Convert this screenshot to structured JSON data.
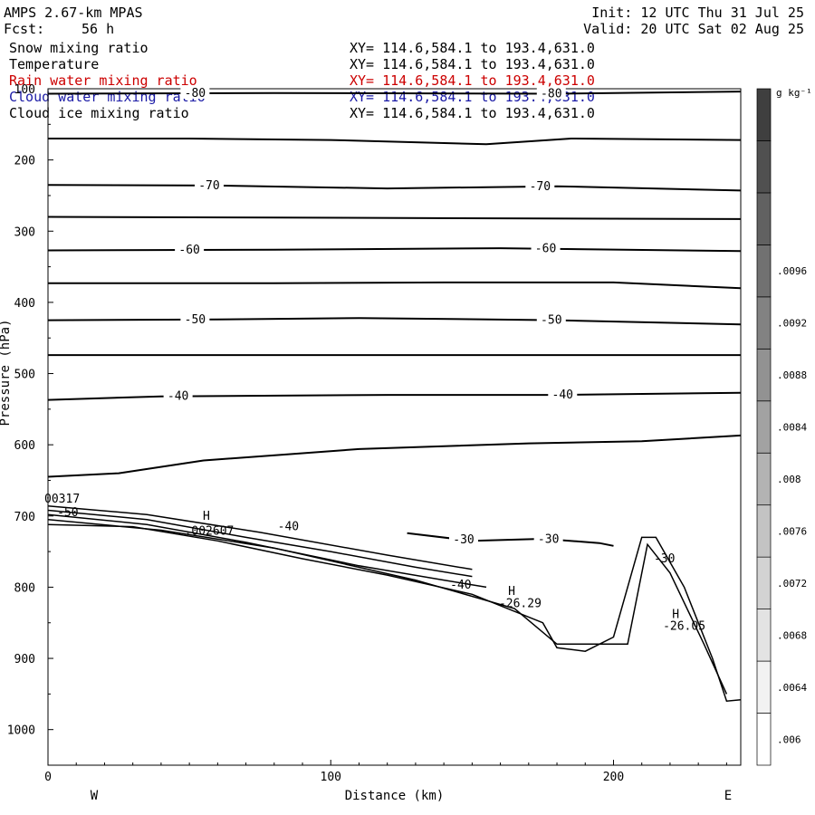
{
  "header": {
    "model": "AMPS 2.67-km MPAS",
    "fcst_label": "Fcst:",
    "fcst_value": "56 h",
    "init": "Init: 12 UTC Thu 31 Jul 25",
    "valid": "Valid: 20 UTC Sat 02 Aug 25"
  },
  "variables": [
    {
      "name": "Snow mixing ratio",
      "xy": "XY= 114.6,584.1 to 193.4,631.0",
      "color": "#000000"
    },
    {
      "name": "Temperature",
      "xy": "XY= 114.6,584.1 to 193.4,631.0",
      "color": "#000000"
    },
    {
      "name": "Rain water mixing ratio",
      "xy": "XY= 114.6,584.1 to 193.4,631.0",
      "color": "#cc0000"
    },
    {
      "name": "Cloud water mixing ratio",
      "xy": "XY= 114.6,584.1 to 193.4,631.0",
      "color": "#1a1aa6"
    },
    {
      "name": "Cloud ice mixing ratio",
      "xy": "XY= 114.6,584.1 to 193.4,631.0",
      "color": "#000000"
    }
  ],
  "chart_data": {
    "type": "contour-cross-section",
    "xlabel": "Distance (km)",
    "ylabel": "Pressure (hPa)",
    "xlim": [
      0,
      245
    ],
    "ylim": [
      1050,
      100
    ],
    "x_ticks": [
      0,
      100,
      200
    ],
    "y_ticks": [
      100,
      200,
      300,
      400,
      500,
      600,
      700,
      800,
      900,
      1000
    ],
    "x_end_labels": {
      "left": "W",
      "right": "E"
    },
    "isotherms": [
      {
        "value": -80,
        "labeled": true,
        "points": [
          [
            0,
            107
          ],
          [
            80,
            106
          ],
          [
            180,
            107
          ],
          [
            245,
            104
          ]
        ],
        "label_x": [
          52,
          178
        ]
      },
      {
        "value": -75,
        "labeled": false,
        "points": [
          [
            0,
            170
          ],
          [
            50,
            170
          ],
          [
            100,
            172
          ],
          [
            155,
            178
          ],
          [
            185,
            170
          ],
          [
            245,
            172
          ]
        ]
      },
      {
        "value": -70,
        "labeled": true,
        "points": [
          [
            0,
            235
          ],
          [
            60,
            236
          ],
          [
            120,
            240
          ],
          [
            180,
            237
          ],
          [
            245,
            243
          ]
        ],
        "label_x": [
          57,
          174
        ]
      },
      {
        "value": -65,
        "labeled": false,
        "points": [
          [
            0,
            280
          ],
          [
            80,
            281
          ],
          [
            160,
            282
          ],
          [
            245,
            283
          ]
        ]
      },
      {
        "value": -60,
        "labeled": true,
        "points": [
          [
            0,
            327
          ],
          [
            80,
            326
          ],
          [
            160,
            324
          ],
          [
            245,
            328
          ]
        ],
        "label_x": [
          50,
          176
        ]
      },
      {
        "value": -55,
        "labeled": false,
        "points": [
          [
            0,
            373
          ],
          [
            80,
            373
          ],
          [
            140,
            372
          ],
          [
            200,
            372
          ],
          [
            245,
            380
          ]
        ]
      },
      {
        "value": -50,
        "labeled": true,
        "points": [
          [
            0,
            425
          ],
          [
            60,
            424
          ],
          [
            110,
            422
          ],
          [
            180,
            425
          ],
          [
            245,
            431
          ]
        ],
        "label_x": [
          52,
          178
        ]
      },
      {
        "value": -45,
        "labeled": false,
        "points": [
          [
            0,
            474
          ],
          [
            80,
            474
          ],
          [
            160,
            474
          ],
          [
            245,
            474
          ]
        ]
      },
      {
        "value": -40,
        "labeled": true,
        "points": [
          [
            0,
            537
          ],
          [
            40,
            532
          ],
          [
            120,
            530
          ],
          [
            180,
            530
          ],
          [
            245,
            527
          ]
        ],
        "label_x": [
          46,
          182
        ]
      },
      {
        "value": -35,
        "labeled": false,
        "points": [
          [
            0,
            645
          ],
          [
            25,
            640
          ],
          [
            55,
            622
          ],
          [
            110,
            606
          ],
          [
            170,
            598
          ],
          [
            210,
            595
          ],
          [
            245,
            587
          ]
        ]
      },
      {
        "value": -30,
        "labeled": true,
        "points": [
          [
            127,
            724
          ],
          [
            150,
            735
          ],
          [
            175,
            732
          ],
          [
            195,
            738
          ],
          [
            200,
            742
          ]
        ],
        "label_x": [
          147,
          177
        ]
      },
      {
        "value": -30,
        "labeled": true,
        "label_only": true,
        "points": [],
        "label_x": [
          218
        ]
      }
    ],
    "terrain_contours": [
      [
        [
          0,
          712
        ],
        [
          30,
          715
        ],
        [
          60,
          735
        ],
        [
          90,
          760
        ],
        [
          120,
          783
        ],
        [
          150,
          810
        ],
        [
          175,
          850
        ],
        [
          180,
          885
        ],
        [
          190,
          890
        ],
        [
          200,
          870
        ],
        [
          210,
          730
        ],
        [
          215,
          730
        ],
        [
          225,
          800
        ],
        [
          235,
          900
        ],
        [
          240,
          960
        ],
        [
          245,
          958
        ]
      ],
      [
        [
          0,
          705
        ],
        [
          40,
          720
        ],
        [
          80,
          745
        ],
        [
          130,
          790
        ],
        [
          165,
          830
        ],
        [
          180,
          880
        ],
        [
          205,
          880
        ],
        [
          212,
          740
        ],
        [
          220,
          780
        ],
        [
          232,
          880
        ],
        [
          240,
          950
        ]
      ],
      [
        [
          0,
          698
        ],
        [
          35,
          712
        ],
        [
          70,
          737
        ],
        [
          110,
          770
        ],
        [
          140,
          790
        ],
        [
          155,
          800
        ]
      ],
      [
        [
          0,
          692
        ],
        [
          35,
          705
        ],
        [
          70,
          730
        ],
        [
          100,
          750
        ],
        [
          130,
          772
        ],
        [
          150,
          785
        ]
      ],
      [
        [
          0,
          686
        ],
        [
          35,
          698
        ],
        [
          75,
          723
        ],
        [
          120,
          755
        ],
        [
          150,
          775
        ]
      ]
    ],
    "annotations": [
      {
        "text": "H",
        "x": 56,
        "p": 700
      },
      {
        "text": ".002607",
        "x": 57,
        "p": 721
      },
      {
        "text": "-40",
        "x": 85,
        "p": 715
      },
      {
        "text": "-40",
        "x": 146,
        "p": 797
      },
      {
        "text": "H",
        "x": 164,
        "p": 806
      },
      {
        "text": "-26.29",
        "x": 167,
        "p": 823
      },
      {
        "text": "H",
        "x": 222,
        "p": 838
      },
      {
        "text": "-26.05",
        "x": 225,
        "p": 855
      },
      {
        "text": "-50",
        "x": 7,
        "p": 695
      },
      {
        "text": "00317",
        "x": 5,
        "p": 676
      }
    ],
    "colorbar": {
      "unit": "g kg⁻¹",
      "labels": [
        ".006",
        ".0064",
        ".0068",
        ".0072",
        ".0076",
        ".008",
        ".0084",
        ".0088",
        ".0092",
        ".0096"
      ],
      "shades": [
        "#ffffff",
        "#f2f2f2",
        "#e3e3e3",
        "#d3d3d3",
        "#c3c3c3",
        "#b3b3b3",
        "#a2a2a2",
        "#929292",
        "#828282",
        "#717171",
        "#616161",
        "#505050",
        "#3f3f3f"
      ]
    }
  }
}
